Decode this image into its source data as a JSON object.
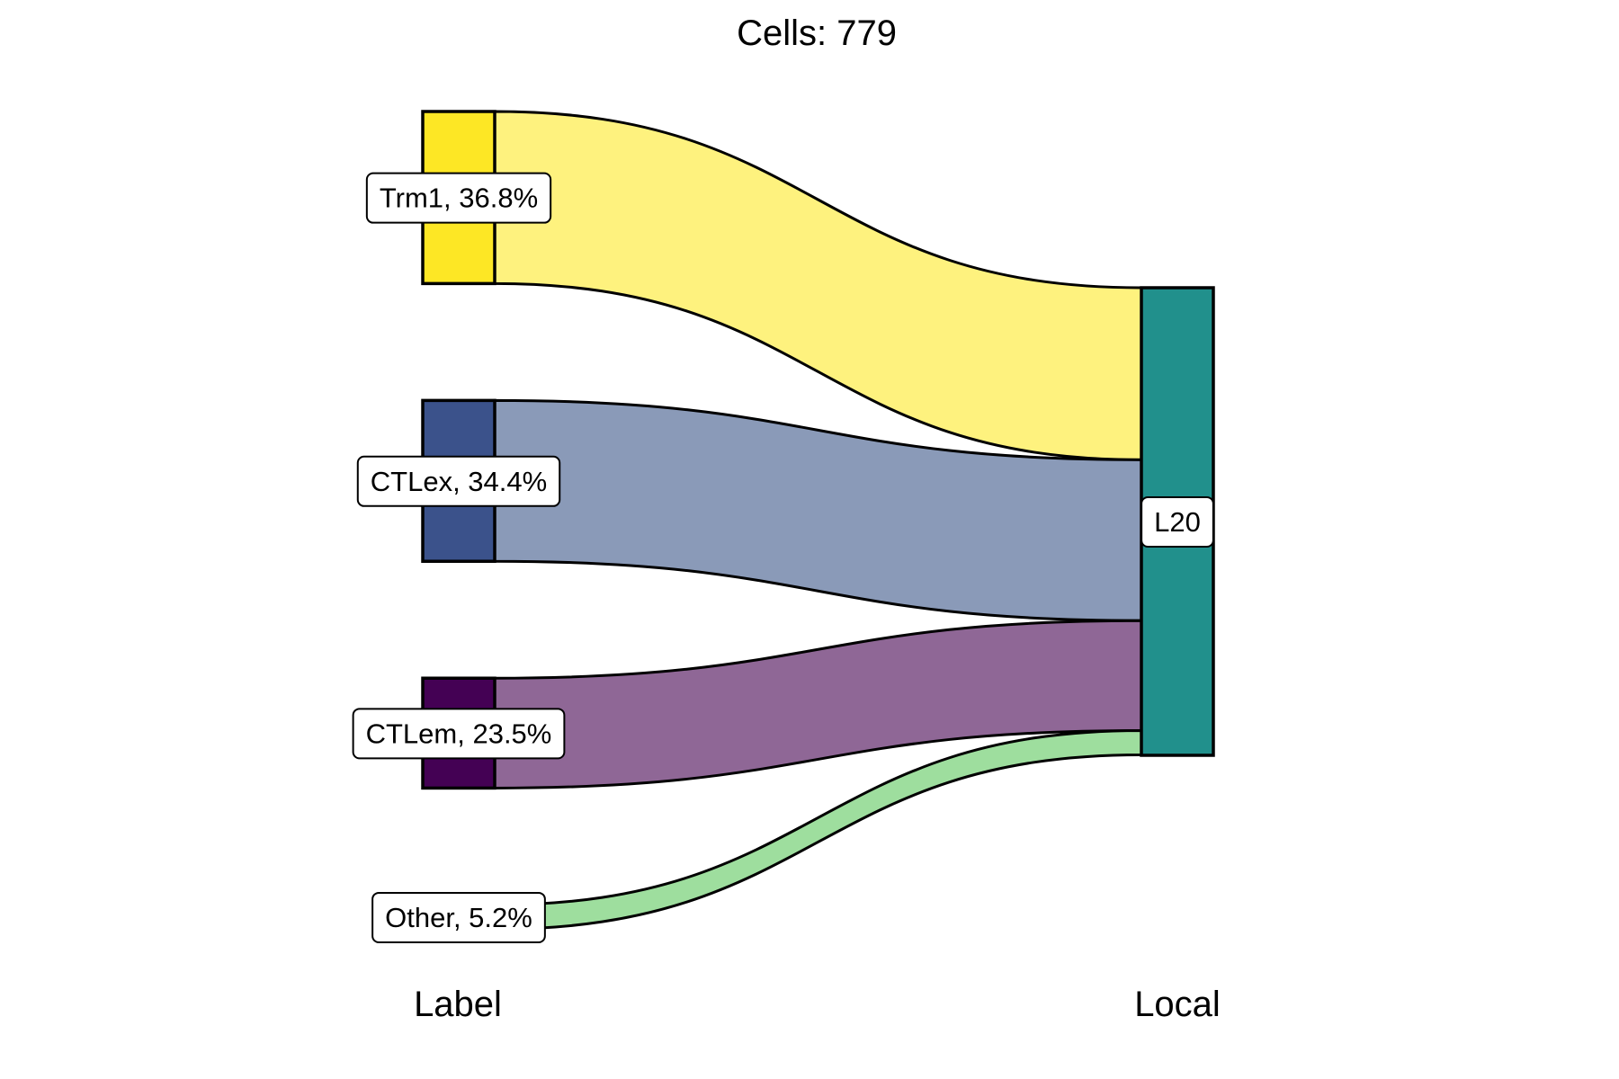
{
  "chart_data": {
    "type": "sankey",
    "title": "Cells:  779",
    "axes": [
      "Label",
      "Local"
    ],
    "left_nodes": [
      {
        "name": "Trm1",
        "label": "Trm1, 36.8%",
        "percent": 36.8,
        "color": "#FDE725"
      },
      {
        "name": "CTLex",
        "label": "CTLex, 34.4%",
        "percent": 34.4,
        "color": "#3B528B"
      },
      {
        "name": "CTLem",
        "label": "CTLem, 23.5%",
        "percent": 23.5,
        "color": "#440154"
      },
      {
        "name": "Other",
        "label": "Other, 5.2%",
        "percent": 5.2,
        "color": "#5EC962"
      }
    ],
    "right_nodes": [
      {
        "name": "L20",
        "label": "L20",
        "percent": 100,
        "color": "#21908C"
      }
    ],
    "flows": [
      {
        "from": "Trm1",
        "to": "L20",
        "percent": 36.8,
        "color": "#FEF27E"
      },
      {
        "from": "CTLex",
        "to": "L20",
        "percent": 34.4,
        "color": "#8A9AB8"
      },
      {
        "from": "CTLem",
        "to": "L20",
        "percent": 23.5,
        "color": "#8F6796"
      },
      {
        "from": "Other",
        "to": "L20",
        "percent": 5.2,
        "color": "#9EDE9E"
      }
    ]
  }
}
